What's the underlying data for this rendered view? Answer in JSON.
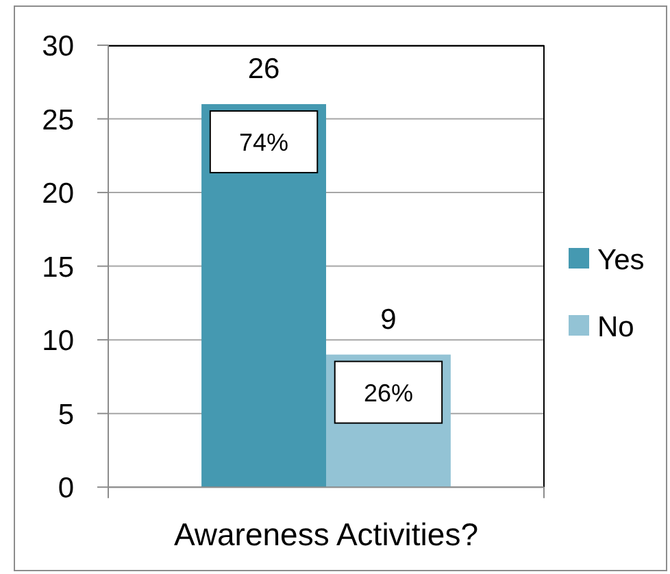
{
  "chart_data": {
    "type": "bar",
    "categories": [
      "Awareness Activities?"
    ],
    "series": [
      {
        "name": "Yes",
        "color": "#4599b1",
        "values": [
          26
        ]
      },
      {
        "name": "No",
        "color": "#93c3d5",
        "values": [
          9
        ]
      }
    ],
    "ylim": [
      0,
      30
    ],
    "yticks": [
      0,
      5,
      10,
      15,
      20,
      25,
      30
    ],
    "grid": "y",
    "legend": "right",
    "data_labels": true,
    "annotations": [
      "74%",
      "26%"
    ]
  }
}
